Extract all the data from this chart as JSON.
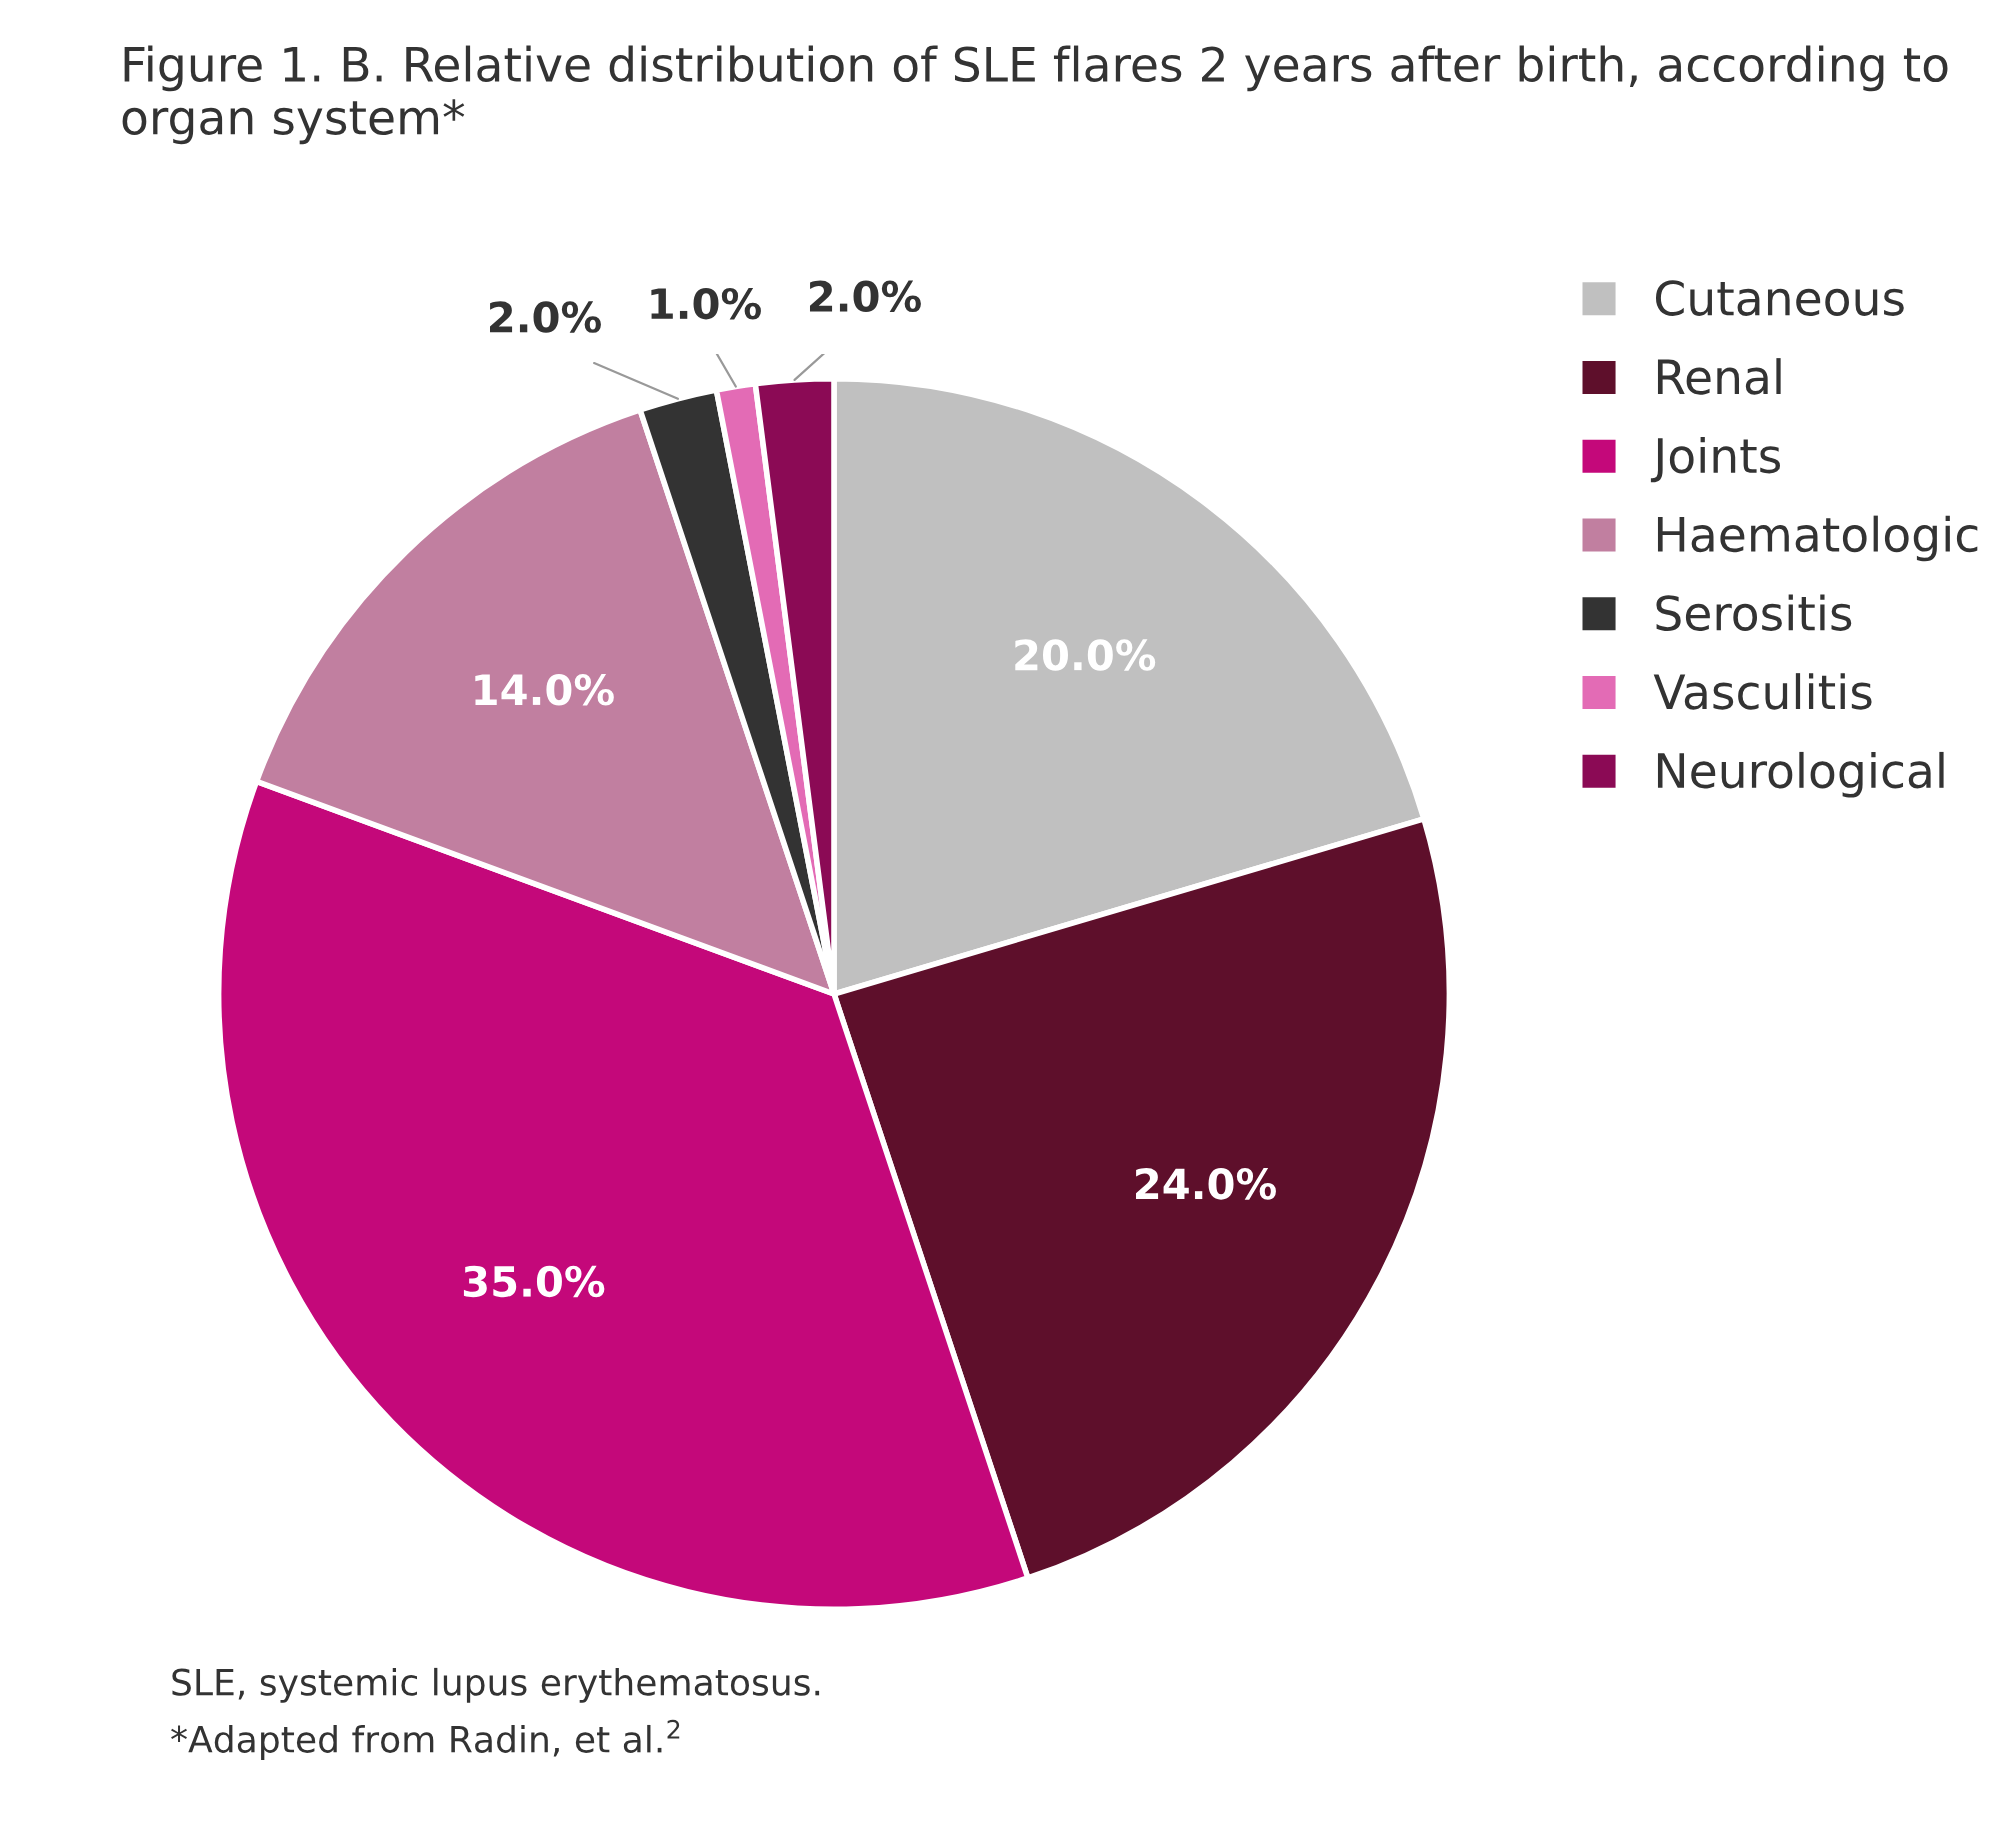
{
  "chart_data": {
    "type": "pie",
    "title": "Figure 1. B. Relative distribution of SLE flares 2 years after birth, according to organ system*",
    "categories": [
      "Cutaneous",
      "Renal",
      "Joints",
      "Haematologic",
      "Serositis",
      "Vasculitis",
      "Neurological"
    ],
    "values": [
      20,
      24,
      35,
      14,
      2,
      1,
      2
    ],
    "value_labels": [
      "20.0%",
      "24.0%",
      "35.0%",
      "14.0%",
      "2.0%",
      "1.0%",
      "2.0%"
    ],
    "colors": [
      "#c0c0c0",
      "#5e0f2b",
      "#c4087a",
      "#c17fa0",
      "#333333",
      "#e36bb5",
      "#8b0a55"
    ],
    "legend": "right",
    "annotations": [
      "SLE, systemic lupus erythematosus.",
      "*Adapted from Radin, et al.$^{2}$"
    ]
  }
}
